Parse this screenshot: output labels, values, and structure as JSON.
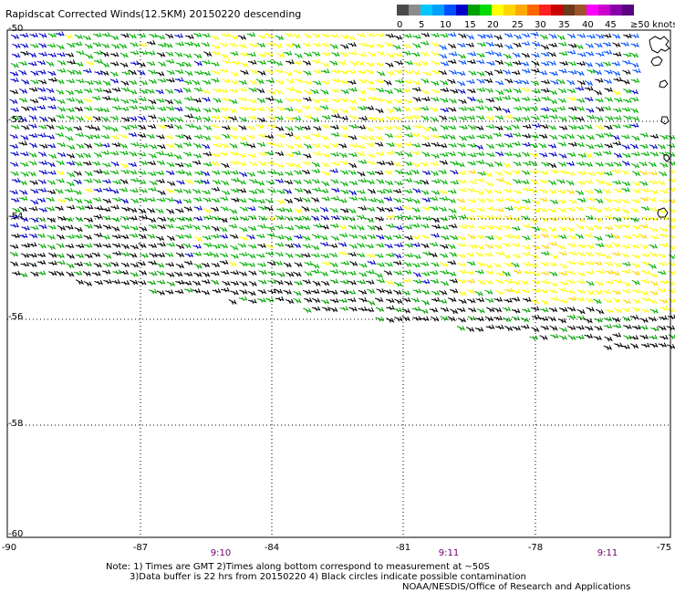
{
  "title": "Rapidscat Corrected Winds(12.5KM) 20150220 descending",
  "legend": {
    "colors": [
      "#4a4a4a",
      "#8c8c8c",
      "#00c8ff",
      "#00a0ff",
      "#0050ff",
      "#0000c8",
      "#00a000",
      "#00dc00",
      "#ffff00",
      "#ffd700",
      "#ffaa00",
      "#ff6600",
      "#ff2020",
      "#c80000",
      "#6a3a1a",
      "#a0522d",
      "#ff00ff",
      "#cc00cc",
      "#8800aa",
      "#5a0080"
    ],
    "labels": [
      "0",
      "5",
      "10",
      "15",
      "20",
      "25",
      "30",
      "35",
      "40",
      "45",
      "≥50 knots"
    ]
  },
  "y_ticks": [
    "-50",
    "-52",
    "-54",
    "-56",
    "-58",
    "-60"
  ],
  "x_ticks": [
    "-90",
    "-87",
    "-84",
    "-81",
    "-78",
    "-75"
  ],
  "times": [
    "9:10",
    "9:11",
    "9:11"
  ],
  "notes": {
    "line1": "Note: 1) Times are GMT 2)Times along bottom correspond to measurement at ~50S",
    "line2": "3)Data buffer is 22 hrs from 20150220 4) Black circles indicate possible contamination",
    "line3": "NOAA/NESDIS/Office of Research and Applications"
  }
}
